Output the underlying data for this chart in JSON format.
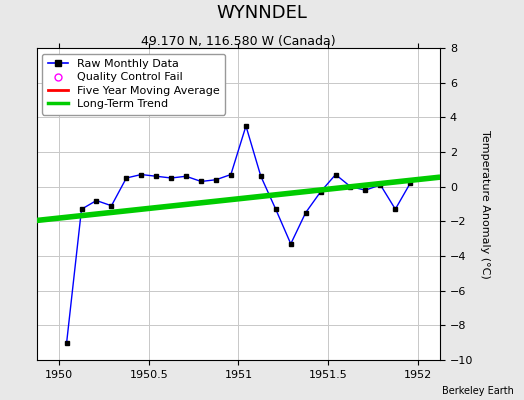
{
  "title": "WYNNDEL",
  "subtitle": "49.170 N, 116.580 W (Canada)",
  "attribution": "Berkeley Earth",
  "ylabel": "Temperature Anomaly (°C)",
  "xlim": [
    1949.875,
    1952.125
  ],
  "ylim": [
    -10,
    8
  ],
  "yticks": [
    -10,
    -8,
    -6,
    -4,
    -2,
    0,
    2,
    4,
    6,
    8
  ],
  "xticks": [
    1950,
    1950.5,
    1951,
    1951.5,
    1952
  ],
  "background_color": "#e8e8e8",
  "plot_bg_color": "#ffffff",
  "raw_x": [
    1950.042,
    1950.125,
    1950.208,
    1950.292,
    1950.375,
    1950.458,
    1950.542,
    1950.625,
    1950.708,
    1950.792,
    1950.875,
    1950.958,
    1951.042,
    1951.125,
    1951.208,
    1951.292,
    1951.375,
    1951.458,
    1951.542,
    1951.625,
    1951.708,
    1951.792,
    1951.875,
    1951.958
  ],
  "raw_y": [
    -9.0,
    -1.3,
    -0.8,
    -1.1,
    0.5,
    0.7,
    0.6,
    0.5,
    0.6,
    0.3,
    0.4,
    0.7,
    3.5,
    0.6,
    -1.3,
    -3.3,
    -1.5,
    -0.3,
    0.7,
    0.0,
    -0.2,
    0.1,
    -1.3,
    0.2
  ],
  "trend_x": [
    1949.875,
    1952.125
  ],
  "trend_y": [
    -1.95,
    0.55
  ],
  "raw_color": "#0000ff",
  "raw_marker_color": "#000000",
  "trend_color": "#00cc00",
  "moving_avg_color": "#ff0000",
  "grid_color": "#c8c8c8",
  "title_fontsize": 13,
  "subtitle_fontsize": 9,
  "legend_fontsize": 8,
  "tick_fontsize": 8,
  "ylabel_fontsize": 8
}
